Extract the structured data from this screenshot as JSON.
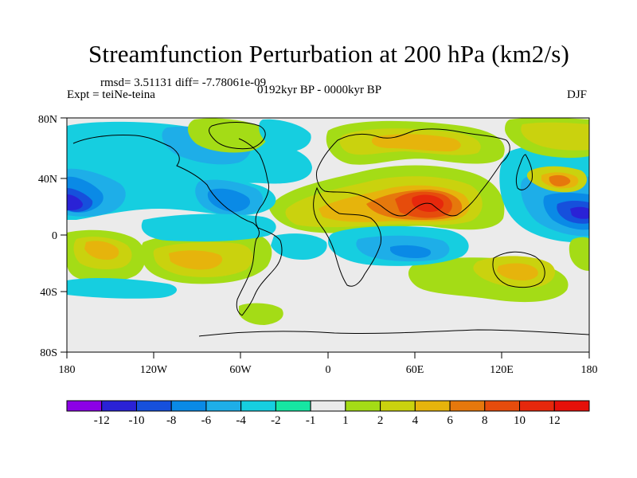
{
  "header": {
    "title": "Streamfunction Perturbation at 200 hPa (km2/s)",
    "stats": "rmsd= 3.51131 diff= -7.78061e-09",
    "experiment": "Expt = teiNe-teina",
    "period": "0192kyr BP - 0000kyr BP",
    "season": "DJF"
  },
  "map": {
    "lat_ticks": [
      "80N",
      "40N",
      "0",
      "40S",
      "80S"
    ],
    "lon_ticks": [
      "180",
      "120W",
      "60W",
      "0",
      "60E",
      "120E",
      "180"
    ]
  },
  "colorbar": {
    "labels": [
      "-12",
      "-10",
      "-8",
      "-6",
      "-4",
      "-2",
      "-1",
      "1",
      "2",
      "4",
      "6",
      "8",
      "10",
      "12"
    ],
    "colors": [
      "#8c00e6",
      "#2a22d6",
      "#1650dc",
      "#0a8ae6",
      "#1eaee8",
      "#16cee0",
      "#16e6a2",
      "#ebebeb",
      "#a4dc16",
      "#cad20e",
      "#e6b40c",
      "#e6780c",
      "#e64c0c",
      "#e6280c",
      "#e6100a"
    ]
  }
}
